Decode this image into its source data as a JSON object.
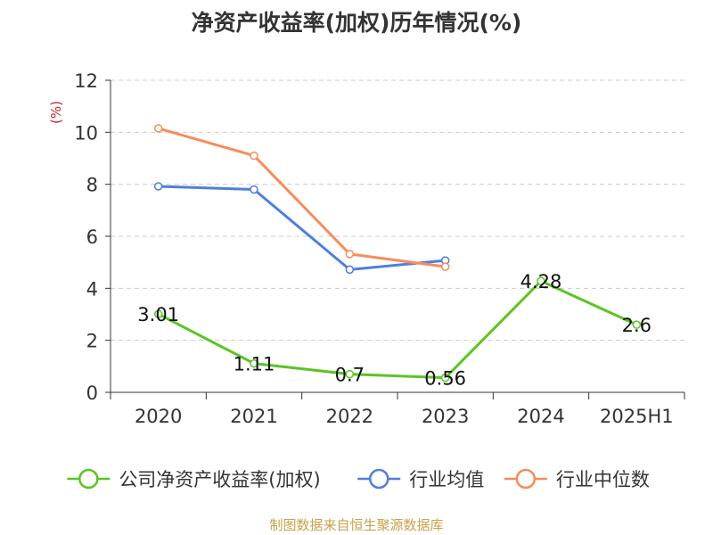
{
  "chart_data": {
    "type": "line",
    "title": "净资产收益率(加权)历年情况(%)",
    "ylabel": "(%)",
    "ylim": [
      0,
      12
    ],
    "yticks": [
      0,
      2,
      4,
      6,
      8,
      10,
      12
    ],
    "grid": true,
    "legend_position": "bottom",
    "categories": [
      "2020",
      "2021",
      "2022",
      "2023",
      "2024",
      "2025H1"
    ],
    "series": [
      {
        "name": "公司净资产收益率(加权)",
        "color": "#5cc425",
        "values": [
          3.01,
          1.11,
          0.7,
          0.56,
          4.28,
          2.6
        ],
        "show_labels": true
      },
      {
        "name": "行业均值",
        "color": "#4f7fdb",
        "values": [
          7.92,
          7.8,
          4.72,
          5.07,
          null,
          null
        ],
        "show_labels": false
      },
      {
        "name": "行业中位数",
        "color": "#f58d5a",
        "values": [
          10.15,
          9.1,
          5.32,
          4.83,
          null,
          null
        ],
        "show_labels": false
      }
    ]
  },
  "footer": {
    "source": "制图数据来自恒生聚源数据库"
  },
  "colors": {
    "ylabel": "#cc2222",
    "grid": "#cccccc",
    "axis": "#333333"
  }
}
